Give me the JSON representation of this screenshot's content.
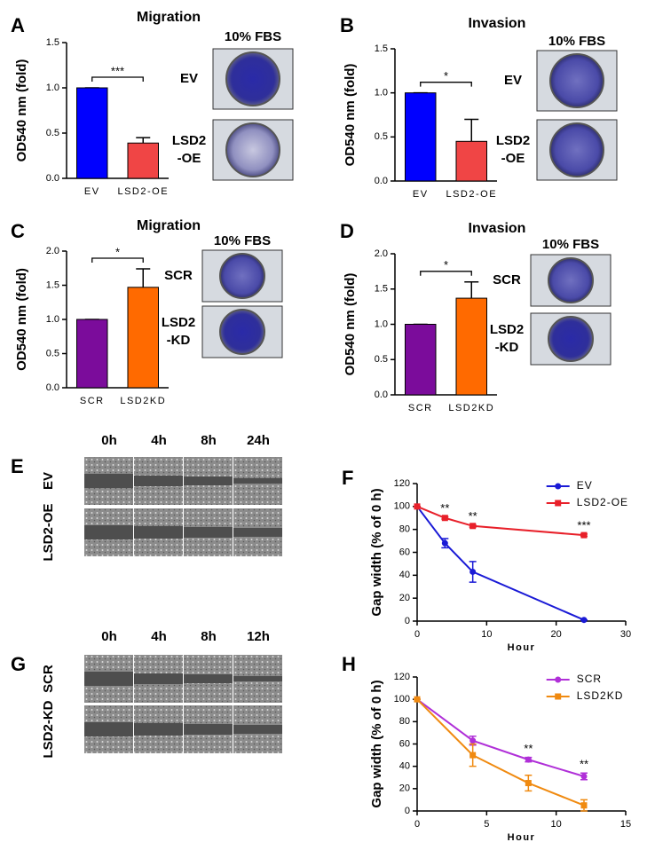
{
  "chart_data": [
    {
      "type": "bar",
      "title": "Migration",
      "y_label": "OD540 nm (fold)",
      "categories": [
        "EV",
        "LSD2-OE"
      ],
      "values": [
        1.0,
        0.39
      ],
      "errors": [
        0,
        0.06
      ],
      "colors": [
        "#0000ff",
        "#f04545"
      ],
      "ylim": [
        0,
        1.5
      ],
      "yticks": [
        {
          "value": 0,
          "label": "0.0"
        },
        {
          "value": 0.5,
          "label": "0.5"
        },
        {
          "value": 1,
          "label": "1.0"
        },
        {
          "value": 1.5,
          "label": "1.5"
        }
      ],
      "annotations": [
        {
          "text": "***"
        }
      ]
    },
    {
      "type": "bar",
      "title": "Invasion",
      "y_label": "OD540 nm (fold)",
      "categories": [
        "EV",
        "LSD2-OE"
      ],
      "values": [
        1.0,
        0.45
      ],
      "errors": [
        0,
        0.25
      ],
      "colors": [
        "#0000ff",
        "#f04545"
      ],
      "ylim": [
        0,
        1.5
      ],
      "yticks": [
        {
          "value": 0,
          "label": "0.0"
        },
        {
          "value": 0.5,
          "label": "0.5"
        },
        {
          "value": 1,
          "label": "1.0"
        },
        {
          "value": 1.5,
          "label": "1.5"
        }
      ],
      "annotations": [
        {
          "text": "*"
        }
      ]
    },
    {
      "type": "bar",
      "title": "Migration",
      "y_label": "OD540 nm (fold)",
      "categories": [
        "SCR",
        "LSD2KD"
      ],
      "values": [
        1.0,
        1.47
      ],
      "errors": [
        0,
        0.27
      ],
      "colors": [
        "#7b0c9b",
        "#ff6a00"
      ],
      "ylim": [
        0,
        2
      ],
      "yticks": [
        {
          "value": 0,
          "label": "0.0"
        },
        {
          "value": 0.5,
          "label": "0.5"
        },
        {
          "value": 1,
          "label": "1.0"
        },
        {
          "value": 1.5,
          "label": "1.5"
        },
        {
          "value": 2,
          "label": "2.0"
        }
      ],
      "annotations": [
        {
          "text": "*"
        }
      ]
    },
    {
      "type": "bar",
      "title": "Invasion",
      "y_label": "OD540 nm (fold)",
      "categories": [
        "SCR",
        "LSD2KD"
      ],
      "values": [
        1.0,
        1.37
      ],
      "errors": [
        0,
        0.23
      ],
      "colors": [
        "#7b0c9b",
        "#ff6a00"
      ],
      "ylim": [
        0,
        2
      ],
      "yticks": [
        {
          "value": 0,
          "label": "0.0"
        },
        {
          "value": 0.5,
          "label": "0.5"
        },
        {
          "value": 1,
          "label": "1.0"
        },
        {
          "value": 1.5,
          "label": "1.5"
        },
        {
          "value": 2,
          "label": "2.0"
        }
      ],
      "annotations": [
        {
          "text": "*"
        }
      ]
    },
    {
      "type": "line",
      "x_label": "Hour",
      "y_label": "Gap width (% of 0 h)",
      "x": [
        0,
        4,
        8,
        24
      ],
      "series": [
        {
          "name": "EV",
          "color": "#1a1ad6",
          "marker": "circle",
          "values": [
            100,
            68,
            43,
            1
          ],
          "errors": [
            0,
            4,
            9,
            0
          ]
        },
        {
          "name": "LSD2-OE",
          "color": "#e8202a",
          "marker": "square",
          "values": [
            100,
            90,
            83,
            75
          ],
          "errors": [
            0,
            1,
            1,
            1
          ]
        }
      ],
      "xlim": [
        0,
        30
      ],
      "xticks": [
        0,
        10,
        20,
        30
      ],
      "ylim": [
        0,
        120
      ],
      "yticks": [
        0,
        20,
        40,
        60,
        80,
        100,
        120
      ],
      "legend": "top right",
      "annotations": [
        {
          "x": 4,
          "text": "**"
        },
        {
          "x": 8,
          "text": "**"
        },
        {
          "x": 24,
          "text": "***"
        }
      ]
    },
    {
      "type": "line",
      "x_label": "Hour",
      "y_label": "Gap width (% of 0 h)",
      "x": [
        0,
        4,
        8,
        12
      ],
      "series": [
        {
          "name": "SCR",
          "color": "#b030d8",
          "marker": "circle",
          "values": [
            100,
            63,
            46,
            31
          ],
          "errors": [
            0,
            4,
            2,
            3
          ]
        },
        {
          "name": "LSD2KD",
          "color": "#f08a10",
          "marker": "square",
          "values": [
            100,
            50,
            25,
            5
          ],
          "errors": [
            0,
            10,
            7,
            5
          ]
        }
      ],
      "xlim": [
        0,
        15
      ],
      "xticks": [
        0,
        5,
        10,
        15
      ],
      "ylim": [
        0,
        120
      ],
      "yticks": [
        0,
        20,
        40,
        60,
        80,
        100,
        120
      ],
      "legend": "top right",
      "annotations": [
        {
          "x": 8,
          "text": "**"
        },
        {
          "x": 12,
          "text": "**"
        }
      ]
    }
  ],
  "figure": {
    "panel_letters": [
      "A",
      "B",
      "C",
      "D",
      "E",
      "F",
      "G",
      "H"
    ],
    "transwell": [
      {
        "header": "10% FBS",
        "rows": [
          [
            "EV"
          ],
          [
            "LSD2",
            "-OE"
          ]
        ]
      },
      {
        "header": "10% FBS",
        "rows": [
          [
            "EV"
          ],
          [
            "LSD2",
            "-OE"
          ]
        ]
      },
      {
        "header": "10% FBS",
        "rows": [
          [
            "SCR"
          ],
          [
            "LSD2",
            "-KD"
          ]
        ]
      },
      {
        "header": "10% FBS",
        "rows": [
          [
            "SCR"
          ],
          [
            "LSD2",
            "-KD"
          ]
        ]
      }
    ],
    "scratch": [
      {
        "times": [
          "0h",
          "4h",
          "8h",
          "24h"
        ],
        "rows": [
          "EV",
          "LSD2-OE"
        ]
      },
      {
        "times": [
          "0h",
          "4h",
          "8h",
          "12h"
        ],
        "rows": [
          "SCR",
          "LSD2-KD"
        ]
      }
    ]
  }
}
